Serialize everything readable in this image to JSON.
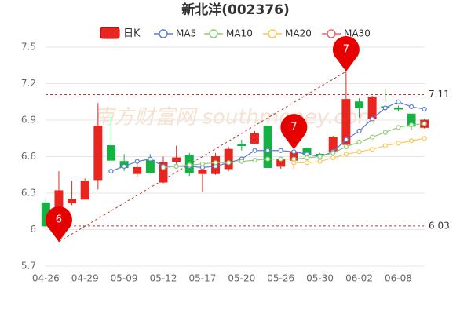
{
  "chart_data": {
    "type": "candlestick",
    "title": "新北洋(002376)",
    "categories": [
      "04-26",
      null,
      null,
      "04-29",
      null,
      null,
      "05-09",
      null,
      null,
      "05-12",
      null,
      null,
      "05-17",
      null,
      null,
      "05-20",
      null,
      null,
      "05-26",
      null,
      null,
      "05-30",
      null,
      null,
      "06-02",
      null,
      null,
      "06-08",
      null,
      null
    ],
    "candles": {
      "name": "日K",
      "up_color": "#e8251f",
      "down_color": "#14b143",
      "open": [
        6.22,
        6.03,
        6.22,
        6.25,
        6.41,
        6.69,
        6.56,
        6.46,
        6.57,
        6.39,
        6.56,
        6.61,
        6.46,
        6.46,
        6.5,
        6.7,
        6.71,
        6.85,
        6.52,
        6.57,
        6.67,
        6.62,
        6.64,
        6.7,
        7.05,
        6.91,
        7.01,
        7.0,
        6.95,
        6.84
      ],
      "close": [
        6.03,
        6.32,
        6.25,
        6.4,
        6.85,
        6.57,
        6.51,
        6.51,
        6.47,
        6.55,
        6.59,
        6.47,
        6.49,
        6.6,
        6.66,
        6.69,
        6.79,
        6.51,
        6.58,
        6.64,
        6.62,
        6.61,
        6.76,
        7.07,
        7.0,
        7.09,
        7.0,
        6.99,
        6.85,
        6.9
      ],
      "high": [
        6.26,
        6.48,
        6.4,
        6.42,
        7.04,
        6.95,
        6.62,
        6.55,
        6.62,
        6.6,
        6.69,
        6.63,
        6.52,
        6.63,
        6.68,
        6.74,
        6.81,
        6.85,
        6.6,
        6.66,
        6.67,
        6.63,
        6.77,
        7.3,
        7.08,
        7.1,
        7.15,
        7.02,
        6.95,
        6.91
      ],
      "low": [
        6.02,
        5.9,
        6.2,
        6.25,
        6.33,
        6.56,
        6.48,
        6.43,
        6.46,
        6.38,
        6.53,
        6.44,
        6.31,
        6.45,
        6.48,
        6.65,
        6.7,
        6.51,
        6.5,
        6.5,
        6.58,
        6.59,
        6.62,
        6.68,
        6.92,
        6.9,
        7.05,
        6.97,
        6.82,
        6.83
      ]
    },
    "series": [
      {
        "name": "MA5",
        "color": "#5b7bd5",
        "values": [
          null,
          null,
          null,
          null,
          null,
          6.48,
          6.52,
          6.56,
          6.58,
          6.52,
          6.52,
          6.52,
          6.51,
          6.52,
          6.55,
          6.58,
          6.65,
          6.65,
          6.65,
          6.64,
          6.62,
          6.6,
          6.64,
          6.74,
          6.81,
          6.91,
          7.0,
          7.05,
          7.01,
          6.99
        ]
      },
      {
        "name": "MA10",
        "color": "#91cc75",
        "values": [
          null,
          null,
          null,
          null,
          null,
          null,
          null,
          null,
          null,
          6.51,
          6.52,
          6.53,
          6.54,
          6.55,
          6.55,
          6.56,
          6.57,
          6.58,
          6.58,
          6.58,
          6.59,
          6.6,
          6.63,
          6.68,
          6.72,
          6.76,
          6.8,
          6.84,
          6.86,
          6.87
        ]
      },
      {
        "name": "MA20",
        "color": "#fac858",
        "values": [
          null,
          null,
          null,
          null,
          null,
          null,
          null,
          null,
          null,
          null,
          null,
          null,
          null,
          null,
          null,
          null,
          null,
          null,
          null,
          6.55,
          6.55,
          6.56,
          6.59,
          6.62,
          6.64,
          6.66,
          6.69,
          6.71,
          6.73,
          6.75
        ]
      },
      {
        "name": "MA30",
        "color": "#ee6666",
        "values": [
          null,
          null,
          null,
          null,
          null,
          null,
          null,
          null,
          null,
          null,
          null,
          null,
          null,
          null,
          null,
          null,
          null,
          null,
          null,
          null,
          null,
          null,
          null,
          null,
          null,
          null,
          null,
          null,
          null,
          null
        ]
      }
    ],
    "markers": [
      {
        "index": 23,
        "value": 7.3,
        "label": "7"
      },
      {
        "index": 19,
        "value": 6.66,
        "label": "7"
      },
      {
        "index": 1,
        "value": 5.9,
        "label": "6"
      }
    ],
    "hlines": [
      7.11,
      6.03
    ],
    "watermark": "南方财富网 southmoney.com",
    "ylim": [
      5.7,
      7.5
    ],
    "yticks": [
      5.7,
      6,
      6.3,
      6.6,
      6.9,
      7.2,
      7.5
    ],
    "grid": true
  }
}
